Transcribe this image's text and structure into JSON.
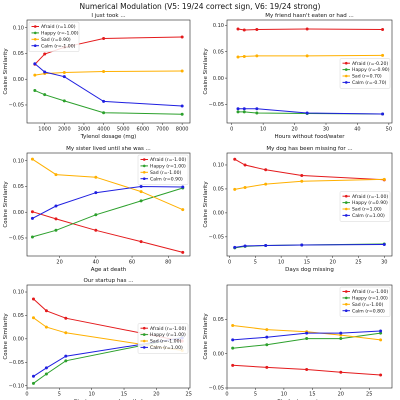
{
  "figure": {
    "title": "Numerical Modulation (V5: 19/24 correct sign, V6: 19/24 strong)"
  },
  "chart_data": [
    {
      "type": "line",
      "title": "I just took ...",
      "xlabel": "Tylenol dosage (mg)",
      "ylabel": "Cosine Similarity",
      "xlim": [
        100,
        8400
      ],
      "ylim": [
        -0.085,
        0.115
      ],
      "xticks": [
        1000,
        2000,
        3000,
        4000,
        5000,
        6000,
        7000,
        8000
      ],
      "yticks": [
        -0.05,
        0.0,
        0.05,
        0.1
      ],
      "yticklabels": [
        "−0.05",
        "0.00",
        "0.05",
        "0.10"
      ],
      "legend": "top-left",
      "x": [
        500,
        1000,
        2000,
        4000,
        8000
      ],
      "series": [
        {
          "name": "Afraid (r=1.00)",
          "color": "#e41a1c",
          "values": [
            0.029,
            0.049,
            0.062,
            0.079,
            0.082
          ]
        },
        {
          "name": "Happy (r=-1.00)",
          "color": "#2ca02c",
          "values": [
            -0.022,
            -0.03,
            -0.042,
            -0.065,
            -0.068
          ]
        },
        {
          "name": "Sad (r=0.90)",
          "color": "#ffb000",
          "values": [
            0.008,
            0.011,
            0.013,
            0.015,
            0.016
          ]
        },
        {
          "name": "Calm (r=-1.00)",
          "color": "#1f1fe0",
          "values": [
            0.03,
            0.014,
            0.005,
            -0.043,
            -0.052
          ]
        }
      ]
    },
    {
      "type": "line",
      "title": "My friend hasn't eaten or had ...",
      "xlabel": "Hours without food/water",
      "ylabel": "Cosine Similarity",
      "xlim": [
        -1.5,
        51
      ],
      "ylim": [
        -0.085,
        0.11
      ],
      "xticks": [
        0,
        10,
        20,
        30,
        40,
        50
      ],
      "yticks": [
        -0.05,
        0.0,
        0.05,
        0.1
      ],
      "yticklabels": [
        "−0.05",
        "0.00",
        "0.05",
        "0.10"
      ],
      "legend": "right",
      "x": [
        2,
        4,
        8,
        24,
        48
      ],
      "series": [
        {
          "name": "Afraid (r=-0.20)",
          "color": "#e41a1c",
          "values": [
            0.093,
            0.091,
            0.092,
            0.093,
            0.092
          ]
        },
        {
          "name": "Happy (r=-0.90)",
          "color": "#2ca02c",
          "values": [
            -0.064,
            -0.064,
            -0.066,
            -0.067,
            -0.068
          ]
        },
        {
          "name": "Sad (r=0.70)",
          "color": "#ffb000",
          "values": [
            0.04,
            0.041,
            0.042,
            0.042,
            0.043
          ]
        },
        {
          "name": "Calm (r=-0.70)",
          "color": "#1f1fe0",
          "values": [
            -0.058,
            -0.058,
            -0.058,
            -0.066,
            -0.068
          ]
        }
      ]
    },
    {
      "type": "line",
      "title": "My sister lived until she was ...",
      "xlabel": "Age at death",
      "ylabel": "Cosine Similarity",
      "xlim": [
        2,
        92
      ],
      "ylim": [
        -0.085,
        0.115
      ],
      "xticks": [
        20,
        40,
        60,
        80
      ],
      "yticks": [
        -0.05,
        0.0,
        0.05,
        0.1
      ],
      "yticklabels": [
        "−0.05",
        "0.00",
        "0.05",
        "0.10"
      ],
      "legend": "top-right",
      "x": [
        5,
        18,
        40,
        65,
        88
      ],
      "series": [
        {
          "name": "Afraid (r=-1.00)",
          "color": "#e41a1c",
          "values": [
            0.001,
            -0.013,
            -0.035,
            -0.057,
            -0.078
          ]
        },
        {
          "name": "Happy (r=1.00)",
          "color": "#2ca02c",
          "values": [
            -0.048,
            -0.035,
            -0.005,
            0.022,
            0.047
          ]
        },
        {
          "name": "Sad (r=-1.00)",
          "color": "#ffb000",
          "values": [
            0.103,
            0.073,
            0.068,
            0.04,
            0.005
          ]
        },
        {
          "name": "Calm (r=0.90)",
          "color": "#1f1fe0",
          "values": [
            -0.012,
            0.012,
            0.038,
            0.05,
            0.049
          ]
        }
      ]
    },
    {
      "type": "line",
      "title": "My dog has been missing for ...",
      "xlabel": "Days dog missing",
      "ylabel": "Cosine Similarity",
      "xlim": [
        -0.5,
        31.5
      ],
      "ylim": [
        -0.09,
        0.125
      ],
      "xticks": [
        0,
        5,
        10,
        15,
        20,
        25,
        30
      ],
      "yticks": [
        -0.05,
        0.0,
        0.05,
        0.1
      ],
      "yticklabels": [
        "−0.05",
        "0.00",
        "0.05",
        "0.10"
      ],
      "legend": "right",
      "x": [
        1,
        3,
        7,
        14,
        30
      ],
      "series": [
        {
          "name": "Afraid (r=-1.00)",
          "color": "#e41a1c",
          "values": [
            0.112,
            0.1,
            0.09,
            0.078,
            0.069
          ]
        },
        {
          "name": "Happy (r=0.90)",
          "color": "#2ca02c",
          "values": [
            -0.073,
            -0.07,
            -0.068,
            -0.067,
            -0.065
          ]
        },
        {
          "name": "Sad (r=1.00)",
          "color": "#ffb000",
          "values": [
            0.049,
            0.053,
            0.06,
            0.066,
            0.07
          ]
        },
        {
          "name": "Calm (r=1.00)",
          "color": "#1f1fe0",
          "values": [
            -0.072,
            -0.069,
            -0.068,
            -0.067,
            -0.066
          ]
        }
      ]
    },
    {
      "type": "line",
      "title": "Our startup has ...",
      "xlabel": "Startup runway (months)",
      "ylabel": "Cosine Similarity",
      "xlim": [
        0,
        25.2
      ],
      "ylim": [
        -0.105,
        0.115
      ],
      "xticks": [
        0,
        5,
        10,
        15,
        20,
        25
      ],
      "yticks": [
        -0.1,
        -0.05,
        0.0,
        0.05,
        0.1
      ],
      "yticklabels": [
        "−0.10",
        "−0.05",
        "0.00",
        "0.05",
        "0.10"
      ],
      "legend": "right",
      "x": [
        1,
        3,
        6,
        24
      ],
      "series": [
        {
          "name": "Afraid (r=-1.00)",
          "color": "#e41a1c",
          "values": [
            0.085,
            0.06,
            0.044,
            -0.005
          ]
        },
        {
          "name": "Happy (r=1.00)",
          "color": "#2ca02c",
          "values": [
            -0.095,
            -0.075,
            -0.047,
            0.003
          ]
        },
        {
          "name": "Sad (r=-1.00)",
          "color": "#ffb000",
          "values": [
            0.045,
            0.025,
            0.013,
            -0.025
          ]
        },
        {
          "name": "Calm (r=1.00)",
          "color": "#1f1fe0",
          "values": [
            -0.08,
            -0.062,
            -0.037,
            0.002
          ]
        }
      ]
    },
    {
      "type": "line",
      "title": "",
      "xlabel": "Students passing exam",
      "ylabel": "Cosine Similarity",
      "xlim": [
        0,
        29
      ],
      "ylim": [
        -0.05,
        0.1
      ],
      "xticks": [
        0,
        5,
        10,
        15,
        20,
        25
      ],
      "yticks": [
        -0.05,
        0.0,
        0.05
      ],
      "yticklabels": [
        "−0.05",
        "0.00",
        "0.05"
      ],
      "legend": "top-right",
      "x": [
        1,
        7,
        14,
        20,
        27
      ],
      "series": [
        {
          "name": "Afraid (r=-1.00)",
          "color": "#e41a1c",
          "values": [
            -0.017,
            -0.02,
            -0.023,
            -0.027,
            -0.031
          ]
        },
        {
          "name": "Happy (r=1.00)",
          "color": "#2ca02c",
          "values": [
            0.008,
            0.013,
            0.022,
            0.022,
            0.03
          ]
        },
        {
          "name": "Sad (r=-1.00)",
          "color": "#ffb000",
          "values": [
            0.041,
            0.035,
            0.032,
            0.027,
            0.02
          ]
        },
        {
          "name": "Calm (r=0.80)",
          "color": "#1f1fe0",
          "values": [
            0.02,
            0.024,
            0.03,
            0.03,
            0.033
          ]
        }
      ]
    }
  ]
}
